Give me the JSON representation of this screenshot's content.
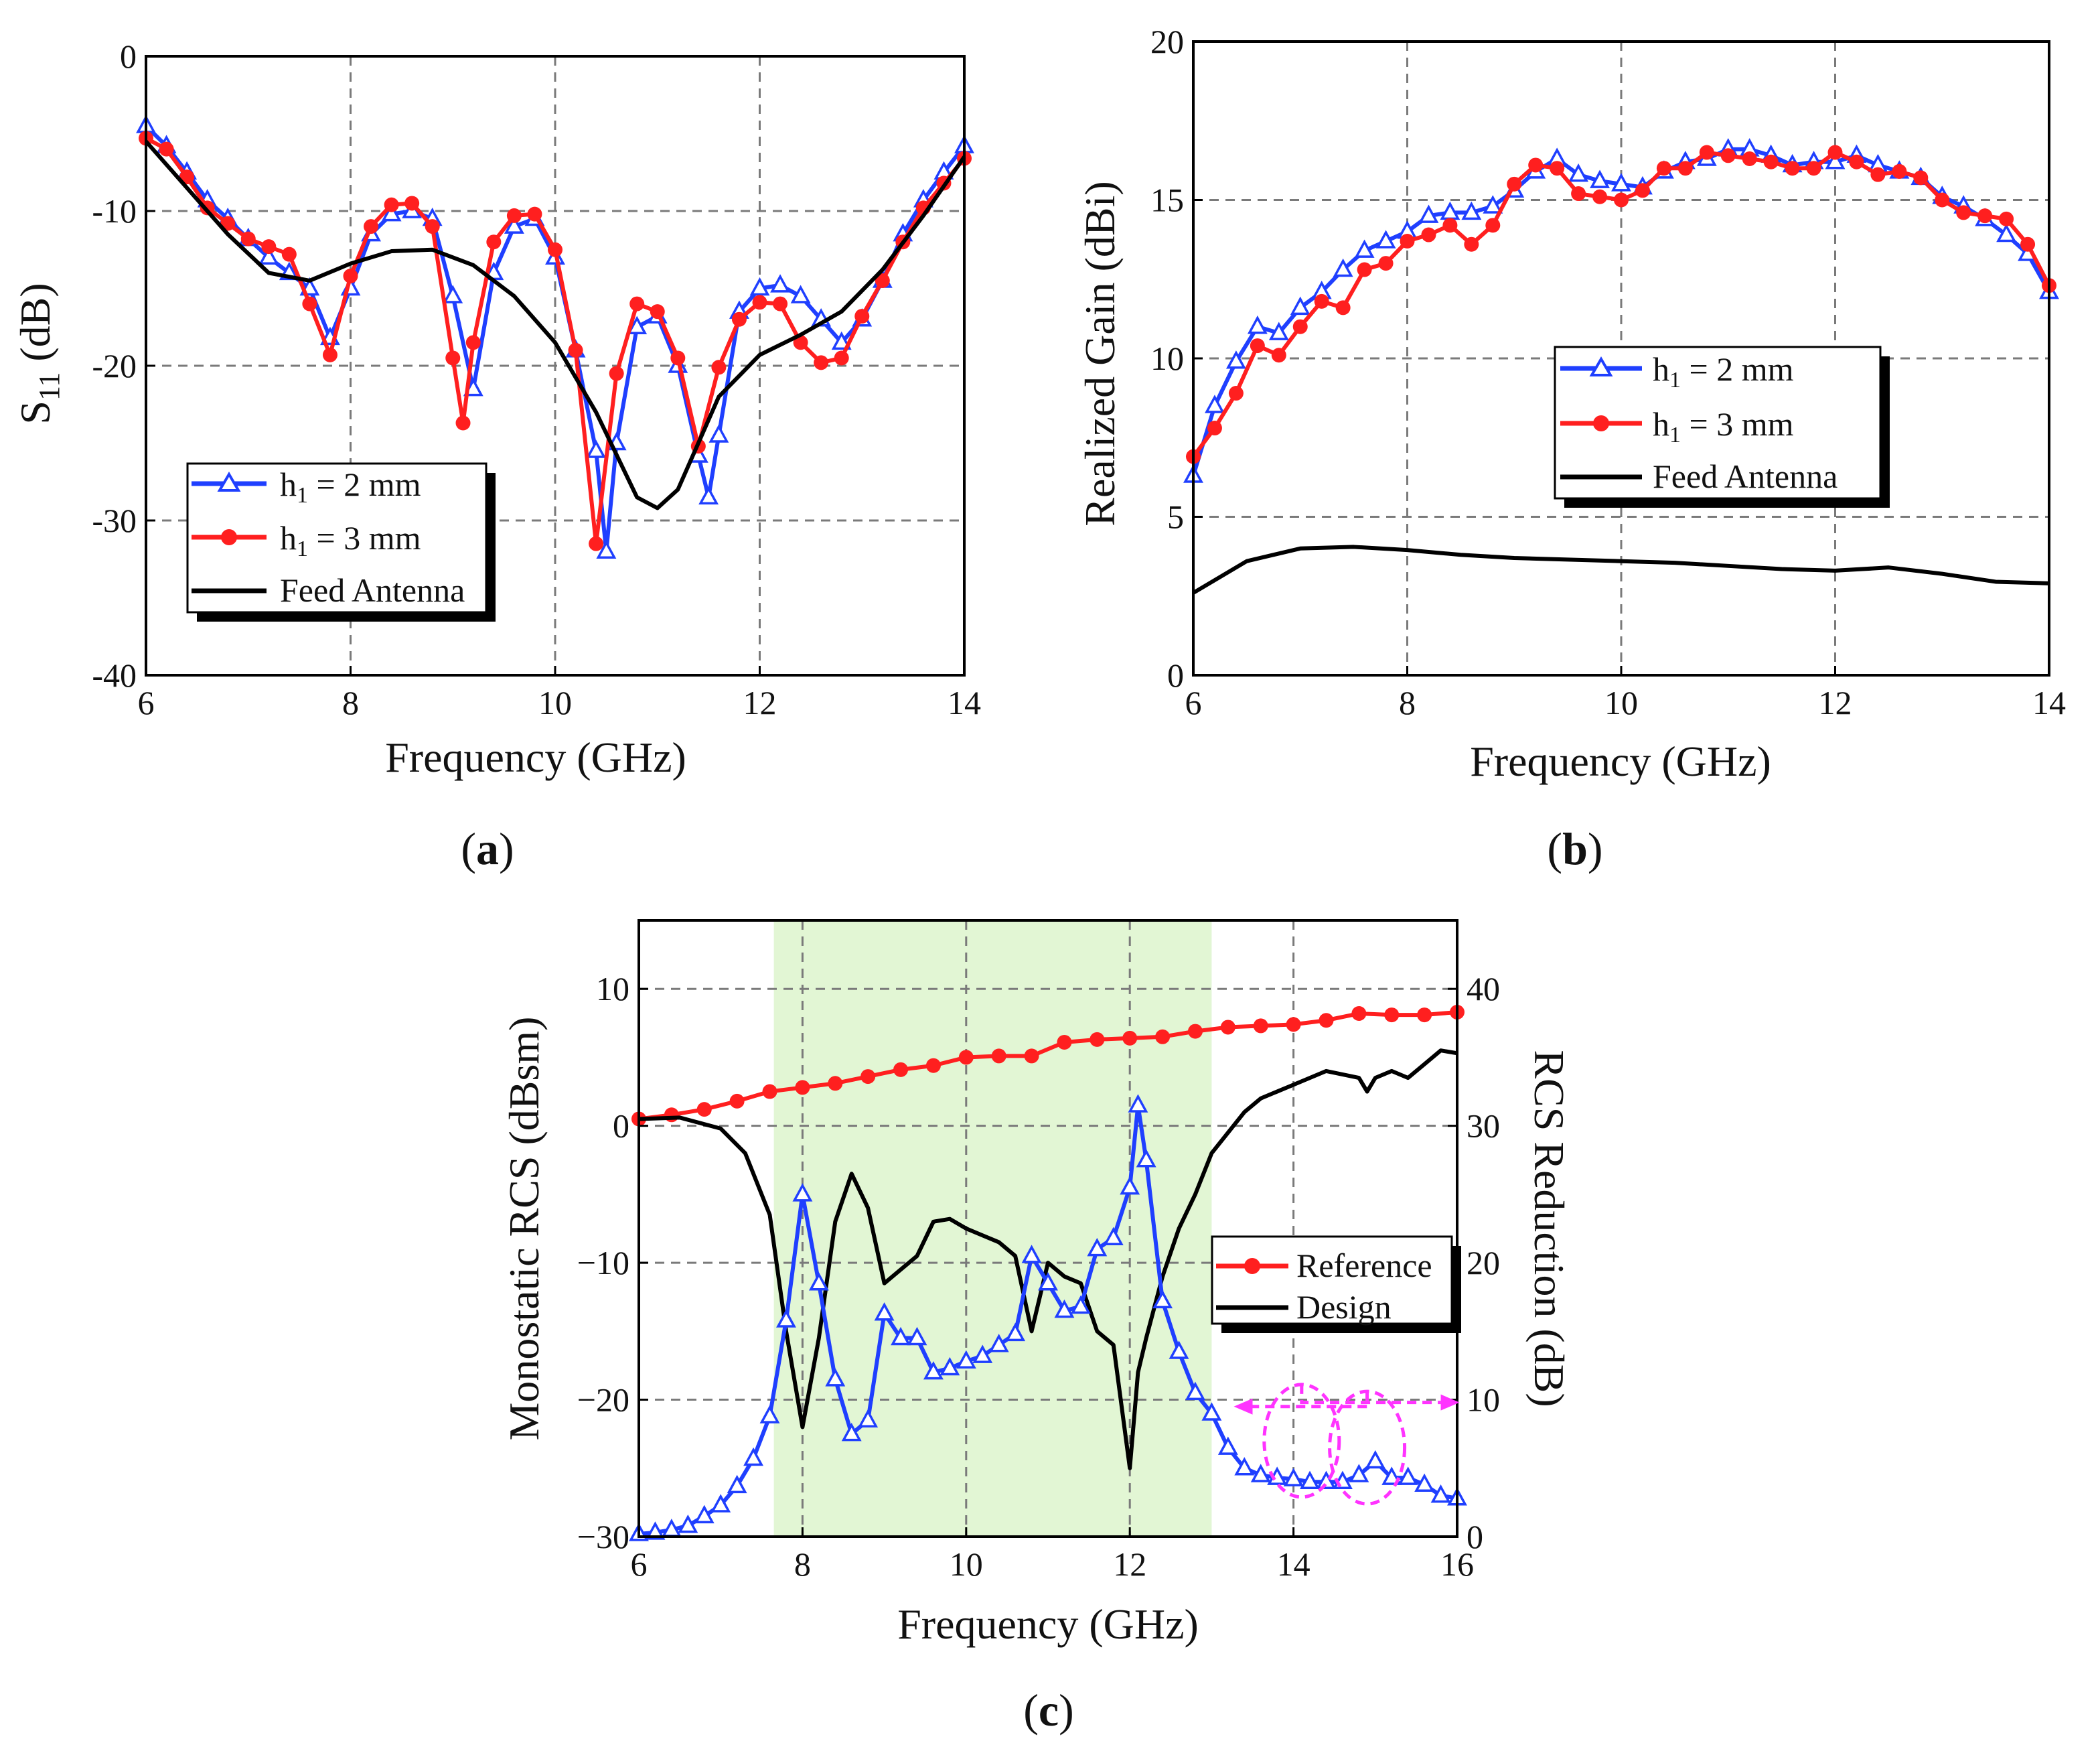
{
  "figure_labels": {
    "a": {
      "open": "(",
      "letter": "a",
      "close": ")"
    },
    "b": {
      "open": "(",
      "letter": "b",
      "close": ")"
    },
    "c": {
      "open": "(",
      "letter": "c",
      "close": ")"
    }
  },
  "colors": {
    "blue": "#1f3fff",
    "red": "#ff1f1f",
    "black": "#000000",
    "magenta": "#ff33ff",
    "shade": "#e2f6d4",
    "grid": "#7a7a7a"
  },
  "chart_data": [
    {
      "id": "a",
      "type": "line",
      "xlabel": "Frequency (GHz)",
      "ylabel": {
        "base": "S",
        "sub": "11",
        "unit": " (dB)"
      },
      "xlim": [
        6,
        14
      ],
      "ylim": [
        -40,
        0
      ],
      "xticks": [
        6,
        8,
        10,
        12,
        14
      ],
      "yticks": [
        0,
        -10,
        -20,
        -30,
        -40
      ],
      "ytick_labels": [
        "0",
        "-10",
        "-20",
        "-30",
        "-40"
      ],
      "grid": true,
      "legend": [
        {
          "base": "h",
          "sub": "1",
          "rest": " = 2 mm"
        },
        {
          "base": "h",
          "sub": "1",
          "rest": " = 3 mm"
        },
        {
          "text": "Feed Antenna"
        }
      ],
      "series": [
        {
          "name": "h1 = 2 mm",
          "color": "blue",
          "marker": "triangle",
          "x": [
            6,
            6.2,
            6.4,
            6.6,
            6.8,
            7,
            7.2,
            7.4,
            7.6,
            7.8,
            8,
            8.2,
            8.4,
            8.6,
            8.8,
            9,
            9.2,
            9.4,
            9.6,
            9.8,
            10,
            10.2,
            10.4,
            10.5,
            10.6,
            10.8,
            11,
            11.2,
            11.4,
            11.5,
            11.6,
            11.8,
            12,
            12.2,
            12.4,
            12.6,
            12.8,
            13,
            13.2,
            13.4,
            13.6,
            13.8,
            14
          ],
          "y": [
            -4.5,
            -5.8,
            -7.5,
            -9.3,
            -10.5,
            -11.8,
            -13,
            -14,
            -15,
            -18.2,
            -15,
            -11.5,
            -10.2,
            -10,
            -10.5,
            -15.5,
            -21.5,
            -14,
            -11,
            -10.5,
            -13,
            -19,
            -25.5,
            -32,
            -25,
            -17.5,
            -16.8,
            -20,
            -25.8,
            -28.5,
            -24.5,
            -16.5,
            -15,
            -14.8,
            -15.5,
            -17,
            -18.5,
            -17,
            -14.5,
            -11.5,
            -9.3,
            -7.5,
            -5.8
          ]
        },
        {
          "name": "h1 = 3 mm",
          "color": "red",
          "marker": "circle",
          "x": [
            6,
            6.2,
            6.4,
            6.6,
            6.8,
            7,
            7.2,
            7.4,
            7.6,
            7.8,
            8,
            8.2,
            8.4,
            8.6,
            8.8,
            9,
            9.1,
            9.2,
            9.4,
            9.6,
            9.8,
            10,
            10.2,
            10.4,
            10.6,
            10.8,
            11,
            11.2,
            11.4,
            11.6,
            11.8,
            12,
            12.2,
            12.4,
            12.6,
            12.8,
            13,
            13.2,
            13.4,
            13.6,
            13.8,
            14
          ],
          "y": [
            -5.3,
            -6,
            -7.8,
            -9.8,
            -10.8,
            -11.8,
            -12.3,
            -12.8,
            -16,
            -19.3,
            -14.2,
            -11,
            -9.6,
            -9.5,
            -11,
            -19.5,
            -23.7,
            -18.5,
            -12,
            -10.3,
            -10.2,
            -12.5,
            -19,
            -31.5,
            -20.5,
            -16,
            -16.5,
            -19.5,
            -25.2,
            -20.1,
            -17,
            -15.9,
            -16,
            -18.5,
            -19.8,
            -19.5,
            -16.8,
            -14.5,
            -12,
            -9.8,
            -8.2,
            -6.6
          ]
        },
        {
          "name": "Feed Antenna",
          "color": "black",
          "marker": "none",
          "x": [
            6,
            6.4,
            6.8,
            7.2,
            7.6,
            8,
            8.4,
            8.8,
            9.2,
            9.6,
            10,
            10.4,
            10.8,
            11,
            11.2,
            11.6,
            12,
            12.4,
            12.8,
            13.2,
            13.6,
            14
          ],
          "y": [
            -5.5,
            -8.5,
            -11.5,
            -14,
            -14.5,
            -13.4,
            -12.6,
            -12.5,
            -13.5,
            -15.5,
            -18.5,
            -23,
            -28.5,
            -29.2,
            -28,
            -22,
            -19.3,
            -18,
            -16.5,
            -13.8,
            -10.3,
            -6.5
          ]
        }
      ]
    },
    {
      "id": "b",
      "type": "line",
      "xlabel": "Frequency (GHz)",
      "ylabel": {
        "text": "Realized Gain (dBi)"
      },
      "xlim": [
        6,
        14
      ],
      "ylim": [
        0,
        20
      ],
      "xticks": [
        6,
        8,
        10,
        12,
        14
      ],
      "yticks": [
        0,
        5,
        10,
        15,
        20
      ],
      "ytick_labels": [
        "0",
        "5",
        "10",
        "15",
        "20"
      ],
      "grid": true,
      "legend": [
        {
          "base": "h",
          "sub": "1",
          "rest": " = 2 mm"
        },
        {
          "base": "h",
          "sub": "1",
          "rest": " = 3 mm"
        },
        {
          "text": "Feed Antenna"
        }
      ],
      "series": [
        {
          "name": "h1 = 2 mm",
          "color": "blue",
          "marker": "triangle",
          "x": [
            6,
            6.2,
            6.4,
            6.6,
            6.8,
            7,
            7.2,
            7.4,
            7.6,
            7.8,
            8,
            8.2,
            8.4,
            8.6,
            8.8,
            9,
            9.2,
            9.4,
            9.6,
            9.8,
            10,
            10.2,
            10.4,
            10.6,
            10.8,
            11,
            11.2,
            11.4,
            11.6,
            11.8,
            12,
            12.2,
            12.4,
            12.6,
            12.8,
            13,
            13.2,
            13.4,
            13.6,
            13.8,
            14
          ],
          "y": [
            6.3,
            8.5,
            9.9,
            11,
            10.8,
            11.6,
            12.1,
            12.8,
            13.4,
            13.7,
            14,
            14.5,
            14.6,
            14.6,
            14.8,
            15.3,
            15.9,
            16.3,
            15.8,
            15.6,
            15.5,
            15.4,
            15.9,
            16.2,
            16.3,
            16.6,
            16.6,
            16.4,
            16.1,
            16.2,
            16.2,
            16.4,
            16.1,
            15.9,
            15.7,
            15.1,
            14.8,
            14.4,
            13.9,
            13.3,
            12.1
          ]
        },
        {
          "name": "h1 = 3 mm",
          "color": "red",
          "marker": "circle",
          "x": [
            6,
            6.2,
            6.4,
            6.6,
            6.8,
            7,
            7.2,
            7.4,
            7.6,
            7.8,
            8,
            8.2,
            8.4,
            8.6,
            8.8,
            9,
            9.2,
            9.4,
            9.6,
            9.8,
            10,
            10.2,
            10.4,
            10.6,
            10.8,
            11,
            11.2,
            11.4,
            11.6,
            11.8,
            12,
            12.2,
            12.4,
            12.6,
            12.8,
            13,
            13.2,
            13.4,
            13.6,
            13.8,
            14
          ],
          "y": [
            6.9,
            7.8,
            8.9,
            10.4,
            10.1,
            11,
            11.8,
            11.6,
            12.8,
            13,
            13.7,
            13.9,
            14.2,
            13.6,
            14.2,
            15.5,
            16.1,
            16,
            15.2,
            15.1,
            15,
            15.3,
            16,
            16,
            16.5,
            16.4,
            16.3,
            16.2,
            16,
            16,
            16.5,
            16.2,
            15.8,
            15.9,
            15.7,
            15,
            14.6,
            14.5,
            14.4,
            13.6,
            12.3
          ]
        },
        {
          "name": "Feed Antenna",
          "color": "black",
          "marker": "none",
          "x": [
            6,
            6.5,
            7,
            7.5,
            8,
            8.5,
            9,
            9.5,
            10,
            10.5,
            11,
            11.5,
            12,
            12.5,
            13,
            13.5,
            14
          ],
          "y": [
            2.6,
            3.6,
            4,
            4.05,
            3.95,
            3.8,
            3.7,
            3.65,
            3.6,
            3.55,
            3.45,
            3.35,
            3.3,
            3.4,
            3.2,
            2.95,
            2.9
          ]
        }
      ]
    },
    {
      "id": "c",
      "type": "line",
      "xlabel": "Frequency (GHz)",
      "ylabel": {
        "text": "Monostatic RCS (dBsm)"
      },
      "ylabel_right": {
        "text": "RCS Reduction (dB)"
      },
      "xlim": [
        6,
        16
      ],
      "ylim": [
        -30,
        15
      ],
      "ylim_right": [
        0,
        45
      ],
      "xticks": [
        6,
        8,
        10,
        12,
        14,
        16
      ],
      "yticks": [
        10,
        0,
        -10,
        -20,
        -30
      ],
      "ytick_labels": [
        "10",
        "0",
        "−10",
        "−20",
        "−30"
      ],
      "yticks_right": [
        0,
        10,
        20,
        30,
        40
      ],
      "ytick_right_labels": [
        "0",
        "10",
        "20",
        "30",
        "40"
      ],
      "shaded_band": [
        7.65,
        13
      ],
      "grid": true,
      "legend": [
        {
          "text": "Reference"
        },
        {
          "text": "Design"
        }
      ],
      "series": [
        {
          "name": "Reference",
          "color": "red",
          "marker": "circle",
          "axis": "left",
          "x": [
            6,
            6.4,
            6.8,
            7.2,
            7.6,
            8,
            8.4,
            8.8,
            9.2,
            9.6,
            10,
            10.4,
            10.8,
            11.2,
            11.6,
            12,
            12.4,
            12.8,
            13.2,
            13.6,
            14,
            14.4,
            14.8,
            15.2,
            15.6,
            16
          ],
          "y": [
            0.5,
            0.8,
            1.2,
            1.8,
            2.5,
            2.8,
            3.1,
            3.6,
            4.1,
            4.4,
            5,
            5.1,
            5.1,
            6.1,
            6.3,
            6.4,
            6.5,
            6.9,
            7.2,
            7.3,
            7.4,
            7.7,
            8.2,
            8.1,
            8.1,
            8.3
          ]
        },
        {
          "name": "Design",
          "color": "black",
          "marker": "none",
          "axis": "left",
          "x": [
            6,
            6.5,
            7,
            7.3,
            7.6,
            7.8,
            8,
            8.2,
            8.4,
            8.6,
            8.8,
            9,
            9.2,
            9.4,
            9.6,
            9.8,
            10,
            10.2,
            10.4,
            10.6,
            10.8,
            11,
            11.2,
            11.4,
            11.6,
            11.8,
            12,
            12.1,
            12.2,
            12.4,
            12.6,
            12.8,
            13,
            13.2,
            13.4,
            13.6,
            13.8,
            14,
            14.4,
            14.8,
            14.9,
            15,
            15.2,
            15.4,
            15.6,
            15.8,
            16
          ],
          "y": [
            0.5,
            0.6,
            -0.2,
            -2,
            -6.5,
            -15,
            -22,
            -15.5,
            -7,
            -3.5,
            -6,
            -11.5,
            -10.5,
            -9.5,
            -7,
            -6.8,
            -7.5,
            -8,
            -8.5,
            -9.5,
            -15,
            -10,
            -11,
            -11.5,
            -15,
            -16,
            -25,
            -18,
            -15.5,
            -11,
            -7.5,
            -5,
            -2,
            -0.5,
            1,
            2,
            2.5,
            3,
            4,
            3.5,
            2.5,
            3.5,
            4,
            3.5,
            4.5,
            5.5,
            5.3
          ]
        },
        {
          "name": "RCS Reduction",
          "color": "blue",
          "marker": "triangle",
          "axis": "right",
          "x": [
            6,
            6.2,
            6.4,
            6.6,
            6.8,
            7,
            7.2,
            7.4,
            7.6,
            7.8,
            8,
            8.2,
            8.4,
            8.6,
            8.8,
            9,
            9.2,
            9.4,
            9.6,
            9.8,
            10,
            10.2,
            10.4,
            10.6,
            10.8,
            11,
            11.2,
            11.4,
            11.6,
            11.8,
            12,
            12.1,
            12.2,
            12.4,
            12.6,
            12.8,
            13,
            13.2,
            13.4,
            13.6,
            13.8,
            14,
            14.2,
            14.4,
            14.6,
            14.8,
            15,
            15.2,
            15.4,
            15.6,
            15.8,
            16
          ],
          "y": [
            0.2,
            0.3,
            0.5,
            0.8,
            1.5,
            2.3,
            3.7,
            5.7,
            8.8,
            15.8,
            25,
            18.5,
            11.5,
            7.5,
            8.5,
            16.3,
            14.5,
            14.5,
            12,
            12.3,
            12.8,
            13.2,
            14,
            14.8,
            20.5,
            18.5,
            16.5,
            16.8,
            21,
            21.8,
            25.5,
            31.5,
            27.5,
            17.2,
            13.5,
            10.5,
            9,
            6.5,
            5,
            4.5,
            4.3,
            4.2,
            4,
            4,
            4,
            4.5,
            5.5,
            4.3,
            4.3,
            3.8,
            3,
            2.8
          ]
        }
      ],
      "annotations": [
        {
          "type": "ellipse",
          "at": [
            14.9,
            6.5
          ],
          "arrow": "left",
          "arrow_to": [
            13.5,
            9.5
          ]
        },
        {
          "type": "ellipse",
          "at": [
            14.1,
            7
          ],
          "arrow": "right",
          "arrow_to": [
            15.8,
            9.8
          ]
        }
      ]
    }
  ]
}
